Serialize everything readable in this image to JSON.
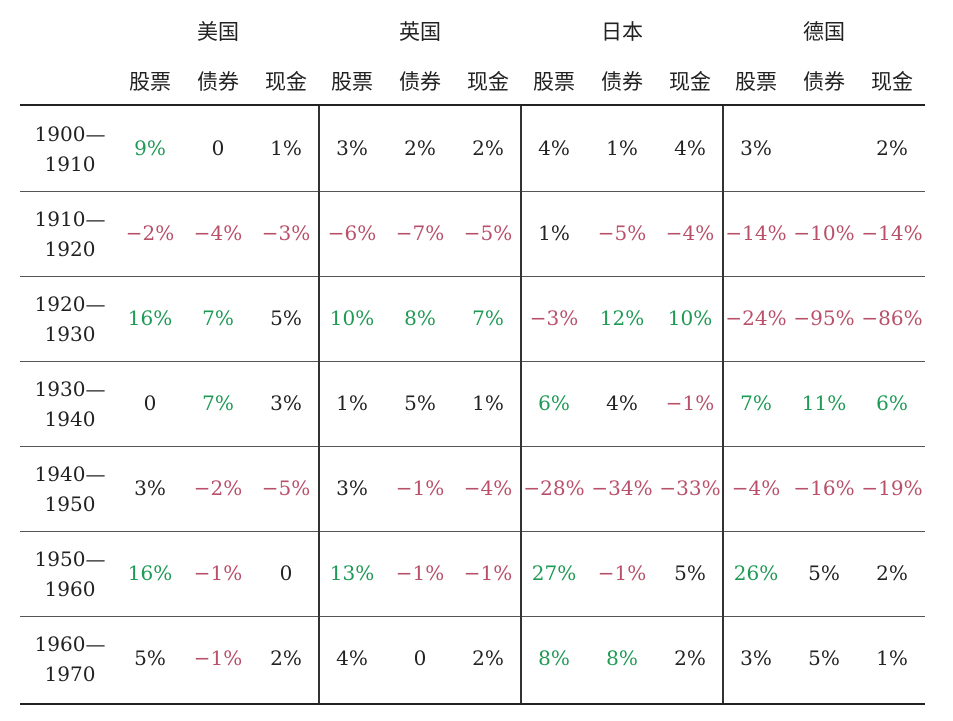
{
  "countries": [
    "美国",
    "英国",
    "日本",
    "德国"
  ],
  "asset_labels": [
    "股票",
    "债券",
    "现金"
  ],
  "colors": {
    "positive": "#1f9a55",
    "negative": "#b9506a",
    "neutral": "#222222"
  },
  "rows": [
    {
      "start": "1900—",
      "end": "1910",
      "cells": [
        {
          "v": "9%",
          "c": "pos"
        },
        {
          "v": "0",
          "c": "neu"
        },
        {
          "v": "1%",
          "c": "neu"
        },
        {
          "v": "3%",
          "c": "neu"
        },
        {
          "v": "2%",
          "c": "neu"
        },
        {
          "v": "2%",
          "c": "neu"
        },
        {
          "v": "4%",
          "c": "neu"
        },
        {
          "v": "1%",
          "c": "neu"
        },
        {
          "v": "4%",
          "c": "neu"
        },
        {
          "v": "3%",
          "c": "neu"
        },
        {
          "v": "",
          "c": "neu"
        },
        {
          "v": "2%",
          "c": "neu"
        }
      ]
    },
    {
      "start": "1910—",
      "end": "1920",
      "cells": [
        {
          "v": "−2%",
          "c": "neg"
        },
        {
          "v": "−4%",
          "c": "neg"
        },
        {
          "v": "−3%",
          "c": "neg"
        },
        {
          "v": "−6%",
          "c": "neg"
        },
        {
          "v": "−7%",
          "c": "neg"
        },
        {
          "v": "−5%",
          "c": "neg"
        },
        {
          "v": "1%",
          "c": "neu"
        },
        {
          "v": "−5%",
          "c": "neg"
        },
        {
          "v": "−4%",
          "c": "neg"
        },
        {
          "v": "−14%",
          "c": "neg"
        },
        {
          "v": "−10%",
          "c": "neg"
        },
        {
          "v": "−14%",
          "c": "neg"
        }
      ]
    },
    {
      "start": "1920—",
      "end": "1930",
      "cells": [
        {
          "v": "16%",
          "c": "pos"
        },
        {
          "v": "7%",
          "c": "pos"
        },
        {
          "v": "5%",
          "c": "neu"
        },
        {
          "v": "10%",
          "c": "pos"
        },
        {
          "v": "8%",
          "c": "pos"
        },
        {
          "v": "7%",
          "c": "pos"
        },
        {
          "v": "−3%",
          "c": "neg"
        },
        {
          "v": "12%",
          "c": "pos"
        },
        {
          "v": "10%",
          "c": "pos"
        },
        {
          "v": "−24%",
          "c": "neg"
        },
        {
          "v": "−95%",
          "c": "neg"
        },
        {
          "v": "−86%",
          "c": "neg"
        }
      ]
    },
    {
      "start": "1930—",
      "end": "1940",
      "cells": [
        {
          "v": "0",
          "c": "neu"
        },
        {
          "v": "7%",
          "c": "pos"
        },
        {
          "v": "3%",
          "c": "neu"
        },
        {
          "v": "1%",
          "c": "neu"
        },
        {
          "v": "5%",
          "c": "neu"
        },
        {
          "v": "1%",
          "c": "neu"
        },
        {
          "v": "6%",
          "c": "pos"
        },
        {
          "v": "4%",
          "c": "neu"
        },
        {
          "v": "−1%",
          "c": "neg"
        },
        {
          "v": "7%",
          "c": "pos"
        },
        {
          "v": "11%",
          "c": "pos"
        },
        {
          "v": "6%",
          "c": "pos"
        }
      ]
    },
    {
      "start": "1940—",
      "end": "1950",
      "cells": [
        {
          "v": "3%",
          "c": "neu"
        },
        {
          "v": "−2%",
          "c": "neg"
        },
        {
          "v": "−5%",
          "c": "neg"
        },
        {
          "v": "3%",
          "c": "neu"
        },
        {
          "v": "−1%",
          "c": "neg"
        },
        {
          "v": "−4%",
          "c": "neg"
        },
        {
          "v": "−28%",
          "c": "neg"
        },
        {
          "v": "−34%",
          "c": "neg"
        },
        {
          "v": "−33%",
          "c": "neg"
        },
        {
          "v": "−4%",
          "c": "neg"
        },
        {
          "v": "−16%",
          "c": "neg"
        },
        {
          "v": "−19%",
          "c": "neg"
        }
      ]
    },
    {
      "start": "1950—",
      "end": "1960",
      "cells": [
        {
          "v": "16%",
          "c": "pos"
        },
        {
          "v": "−1%",
          "c": "neg"
        },
        {
          "v": "0",
          "c": "neu"
        },
        {
          "v": "13%",
          "c": "pos"
        },
        {
          "v": "−1%",
          "c": "neg"
        },
        {
          "v": "−1%",
          "c": "neg"
        },
        {
          "v": "27%",
          "c": "pos"
        },
        {
          "v": "−1%",
          "c": "neg"
        },
        {
          "v": "5%",
          "c": "neu"
        },
        {
          "v": "26%",
          "c": "pos"
        },
        {
          "v": "5%",
          "c": "neu"
        },
        {
          "v": "2%",
          "c": "neu"
        }
      ]
    },
    {
      "start": "1960—",
      "end": "1970",
      "cells": [
        {
          "v": "5%",
          "c": "neu"
        },
        {
          "v": "−1%",
          "c": "neg"
        },
        {
          "v": "2%",
          "c": "neu"
        },
        {
          "v": "4%",
          "c": "neu"
        },
        {
          "v": "0",
          "c": "neu"
        },
        {
          "v": "2%",
          "c": "neu"
        },
        {
          "v": "8%",
          "c": "pos"
        },
        {
          "v": "8%",
          "c": "pos"
        },
        {
          "v": "2%",
          "c": "neu"
        },
        {
          "v": "3%",
          "c": "neu"
        },
        {
          "v": "5%",
          "c": "neu"
        },
        {
          "v": "1%",
          "c": "neu"
        }
      ]
    }
  ]
}
